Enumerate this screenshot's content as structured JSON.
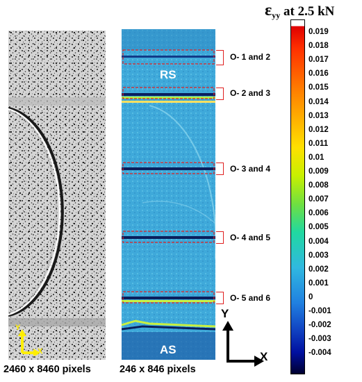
{
  "colorbar": {
    "title_symbol": "ε",
    "title_subscript": "yy",
    "title_rest": " at 2.5 kN",
    "ticks": [
      "0.019",
      "0.018",
      "0.017",
      "0.016",
      "0.015",
      "0.014",
      "0.013",
      "0.012",
      "0.011",
      "0.01",
      "0.009",
      "0.008",
      "0.007",
      "0.006",
      "0.005",
      "0.004",
      "0.003",
      "0.002",
      "0.001",
      "0",
      "-0.001",
      "-0.002",
      "-0.003",
      "-0.004"
    ],
    "colors": [
      "#ffffff",
      "#e00000",
      "#ff3000",
      "#ff8000",
      "#ffb000",
      "#ffe000",
      "#c8f000",
      "#70e040",
      "#20d8a0",
      "#30b8e0",
      "#2080e0",
      "#1040c0",
      "#0010a0",
      "#000030"
    ]
  },
  "left_panel": {
    "caption": "2460 x 8460 pixels",
    "axis_y": "Y",
    "axis_x": "X",
    "axis_color": "#ffee00"
  },
  "middle_panel": {
    "caption": "246 x 846 pixels",
    "region_top": "RS",
    "region_bottom": "AS",
    "box_color": "#e02020"
  },
  "slices": [
    {
      "label": "O- 1 and 2"
    },
    {
      "label": "O- 2 and 3"
    },
    {
      "label": "O- 3 and 4"
    },
    {
      "label": "O- 4 and 5"
    },
    {
      "label": "O- 5 and 6"
    }
  ],
  "axes": {
    "y": "Y",
    "x": "X"
  }
}
